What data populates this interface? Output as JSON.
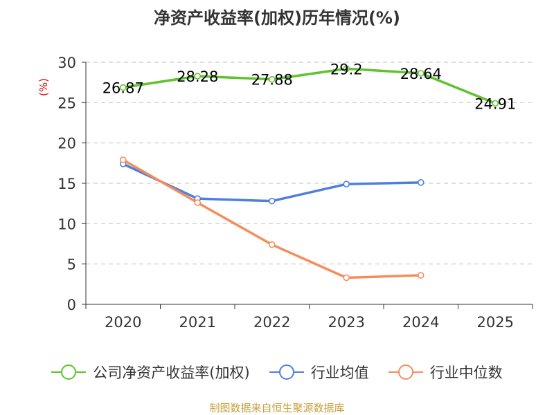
{
  "title": "净资产收益率(加权)历年情况(%)",
  "source": "制图数据来自恒生聚源数据库",
  "colors": {
    "company": "#5fc22e",
    "industry_avg": "#4f7fdc",
    "industry_median": "#f58d5b",
    "axis": "#333333",
    "grid": "#cccccc",
    "unit": "#e00000"
  },
  "chart_data": {
    "type": "line",
    "title": "净资产收益率(加权)历年情况(%)",
    "categories": [
      "2020",
      "2021",
      "2022",
      "2023",
      "2024",
      "2025"
    ],
    "ylabel": "(%)",
    "xlabel": "",
    "ylim": [
      0,
      30
    ],
    "yticks": [
      0,
      5,
      10,
      15,
      20,
      25,
      30
    ],
    "grid": true,
    "legend_position": "bottom",
    "series": [
      {
        "name": "公司净资产收益率(加权)",
        "color_key": "company",
        "values": [
          26.87,
          28.28,
          27.88,
          29.2,
          28.64,
          24.91
        ],
        "labels": [
          "26.87",
          "28.28",
          "27.88",
          "29.2",
          "28.64",
          "24.91"
        ]
      },
      {
        "name": "行业均值",
        "color_key": "industry_avg",
        "values": [
          17.4,
          13.1,
          12.8,
          14.9,
          15.1,
          null
        ]
      },
      {
        "name": "行业中位数",
        "color_key": "industry_median",
        "values": [
          17.9,
          12.6,
          7.4,
          3.3,
          3.6,
          null
        ]
      }
    ]
  }
}
